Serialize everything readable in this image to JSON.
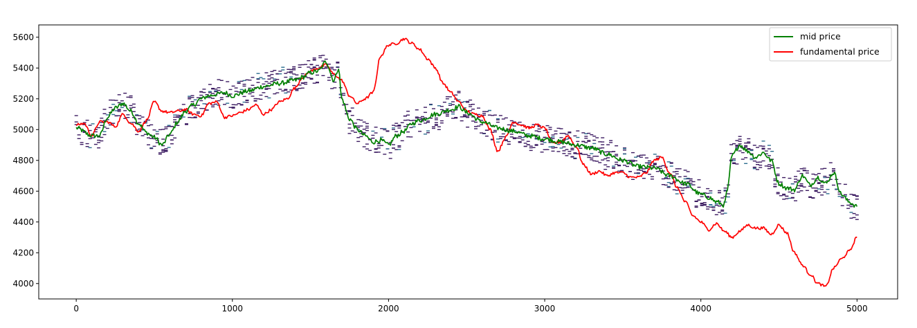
{
  "chart_data": {
    "type": "line",
    "title": "",
    "xlabel": "",
    "ylabel": "",
    "xlim": [
      -240,
      5260
    ],
    "ylim": [
      3900,
      5680
    ],
    "x_ticks": [
      0,
      1000,
      2000,
      3000,
      4000,
      5000
    ],
    "y_ticks": [
      4000,
      4200,
      4400,
      4600,
      4800,
      5000,
      5200,
      5400,
      5600
    ],
    "grid": false,
    "legend": {
      "placement": "top-right"
    },
    "series": [
      {
        "name": "mid price",
        "color": "#008000",
        "x": [
          0,
          100,
          150,
          200,
          250,
          300,
          350,
          400,
          450,
          500,
          550,
          600,
          650,
          700,
          750,
          800,
          850,
          900,
          950,
          1000,
          1100,
          1200,
          1300,
          1400,
          1450,
          1500,
          1550,
          1600,
          1650,
          1680,
          1700,
          1750,
          1800,
          1850,
          1900,
          1950,
          2000,
          2050,
          2100,
          2150,
          2200,
          2300,
          2400,
          2450,
          2500,
          2600,
          2700,
          2800,
          2900,
          3000,
          3100,
          3200,
          3300,
          3400,
          3500,
          3600,
          3700,
          3800,
          3900,
          4000,
          4050,
          4100,
          4150,
          4170,
          4200,
          4250,
          4300,
          4350,
          4400,
          4450,
          4500,
          4550,
          4600,
          4650,
          4700,
          4750,
          4800,
          4850,
          4900,
          4950,
          5000
        ],
        "values": [
          5010,
          4960,
          4960,
          5080,
          5140,
          5170,
          5120,
          5040,
          4980,
          4950,
          4900,
          4970,
          5050,
          5120,
          5160,
          5200,
          5220,
          5230,
          5240,
          5220,
          5250,
          5280,
          5300,
          5320,
          5340,
          5370,
          5380,
          5440,
          5320,
          5400,
          5200,
          5070,
          5000,
          4960,
          4920,
          4930,
          4900,
          4960,
          4990,
          5040,
          5060,
          5100,
          5130,
          5150,
          5110,
          5050,
          5010,
          4990,
          4960,
          4940,
          4920,
          4900,
          4880,
          4840,
          4800,
          4760,
          4750,
          4700,
          4650,
          4580,
          4560,
          4530,
          4510,
          4610,
          4830,
          4900,
          4860,
          4820,
          4850,
          4800,
          4650,
          4620,
          4610,
          4700,
          4640,
          4690,
          4650,
          4720,
          4580,
          4530,
          4500
        ]
      },
      {
        "name": "fundamental price",
        "color": "#ff0000",
        "x": [
          0,
          50,
          100,
          150,
          200,
          250,
          300,
          350,
          400,
          450,
          500,
          550,
          600,
          650,
          700,
          750,
          800,
          850,
          900,
          950,
          1000,
          1050,
          1100,
          1150,
          1200,
          1250,
          1300,
          1350,
          1400,
          1450,
          1500,
          1550,
          1600,
          1650,
          1700,
          1750,
          1800,
          1850,
          1900,
          1950,
          2000,
          2050,
          2100,
          2150,
          2200,
          2250,
          2300,
          2350,
          2400,
          2450,
          2500,
          2550,
          2600,
          2650,
          2700,
          2750,
          2800,
          2850,
          2900,
          2950,
          3000,
          3050,
          3100,
          3150,
          3200,
          3250,
          3300,
          3350,
          3400,
          3450,
          3500,
          3550,
          3600,
          3650,
          3700,
          3750,
          3800,
          3850,
          3900,
          3950,
          4000,
          4050,
          4100,
          4150,
          4200,
          4250,
          4300,
          4350,
          4400,
          4450,
          4500,
          4550,
          4600,
          4650,
          4700,
          4750,
          4800,
          4850,
          4900,
          4950,
          5000
        ],
        "values": [
          5030,
          5040,
          4960,
          5050,
          5050,
          5020,
          5100,
          5040,
          4990,
          5060,
          5180,
          5120,
          5110,
          5120,
          5130,
          5100,
          5090,
          5170,
          5180,
          5080,
          5090,
          5110,
          5130,
          5160,
          5100,
          5130,
          5180,
          5200,
          5270,
          5340,
          5380,
          5400,
          5420,
          5360,
          5320,
          5220,
          5170,
          5200,
          5240,
          5480,
          5550,
          5560,
          5590,
          5560,
          5520,
          5460,
          5400,
          5300,
          5240,
          5180,
          5120,
          5100,
          5090,
          5000,
          4860,
          4950,
          5050,
          5030,
          5010,
          5030,
          5010,
          4910,
          4920,
          4960,
          4890,
          4770,
          4710,
          4730,
          4700,
          4720,
          4720,
          4690,
          4690,
          4720,
          4800,
          4820,
          4720,
          4620,
          4530,
          4440,
          4400,
          4350,
          4390,
          4340,
          4300,
          4340,
          4380,
          4360,
          4360,
          4320,
          4380,
          4330,
          4200,
          4120,
          4060,
          4000,
          3980,
          4100,
          4160,
          4210,
          4300
        ]
      }
    ],
    "order_levels_note_color_dark": "#3b1a60",
    "order_levels_note_color_light": "#2c6e8f"
  }
}
